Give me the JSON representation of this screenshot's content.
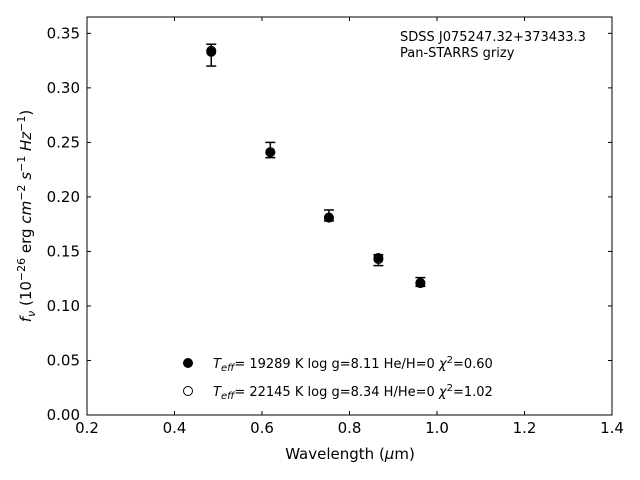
{
  "chart_data": {
    "type": "scatter",
    "title": "",
    "annotation_lines": [
      "SDSS J075247.32+373433.3",
      "Pan-STARRS grizy"
    ],
    "xlabel": {
      "text": "Wavelength (",
      "symbol": "μ",
      "unit": "m)"
    },
    "ylabel": {
      "base": "f",
      "sub": "ν",
      "p1": " (10",
      "exp1": "−26",
      "p2": " erg ",
      "cm": "cm",
      "exp2": "−2",
      "s": " s",
      "exp3": "−1",
      "hz": " Hz",
      "exp4": "−1",
      "close": ")"
    },
    "xlim": [
      0.2,
      1.4
    ],
    "ylim": [
      0.0,
      0.365
    ],
    "xticks": [
      0.2,
      0.4,
      0.6,
      0.8,
      1.0,
      1.2,
      1.4
    ],
    "xtick_labels": [
      "0.2",
      "0.4",
      "0.6",
      "0.8",
      "1.0",
      "1.2",
      "1.4"
    ],
    "yticks": [
      0.0,
      0.05,
      0.1,
      0.15,
      0.2,
      0.25,
      0.3,
      0.35
    ],
    "ytick_labels": [
      "0.00",
      "0.05",
      "0.10",
      "0.15",
      "0.20",
      "0.25",
      "0.30",
      "0.35"
    ],
    "grid": false,
    "legend_position": "lower-center",
    "observed": {
      "x": [
        0.484,
        0.619,
        0.753,
        0.866,
        0.962
      ],
      "y": [
        0.33,
        0.243,
        0.183,
        0.142,
        0.122
      ],
      "yerr": [
        0.01,
        0.007,
        0.005,
        0.005,
        0.004
      ]
    },
    "series": [
      {
        "name": "T_eff= 19289 K  log g=8.11  He/H=0  χ²=0.60",
        "marker": "filled-circle",
        "color": "#000000",
        "teff_sub": "eff",
        "text_main": "= 19289 K  log g=8.11  He/H=0  ",
        "chi_val": "=0.60",
        "x": [
          0.484,
          0.619,
          0.753,
          0.866,
          0.962
        ],
        "y": [
          0.333,
          0.241,
          0.181,
          0.144,
          0.121
        ]
      },
      {
        "name": "T_eff= 22145 K  log g=8.34  H/He=0  χ²=1.02",
        "marker": "open-circle",
        "color": "#000000",
        "teff_sub": "eff",
        "text_main": "= 22145 K  log g=8.34  H/He=0  ",
        "chi_val": "=1.02",
        "x": [
          0.484,
          0.619,
          0.753,
          0.866,
          0.962
        ],
        "y": [
          0.334,
          0.241,
          0.181,
          0.143,
          0.121
        ]
      }
    ]
  }
}
